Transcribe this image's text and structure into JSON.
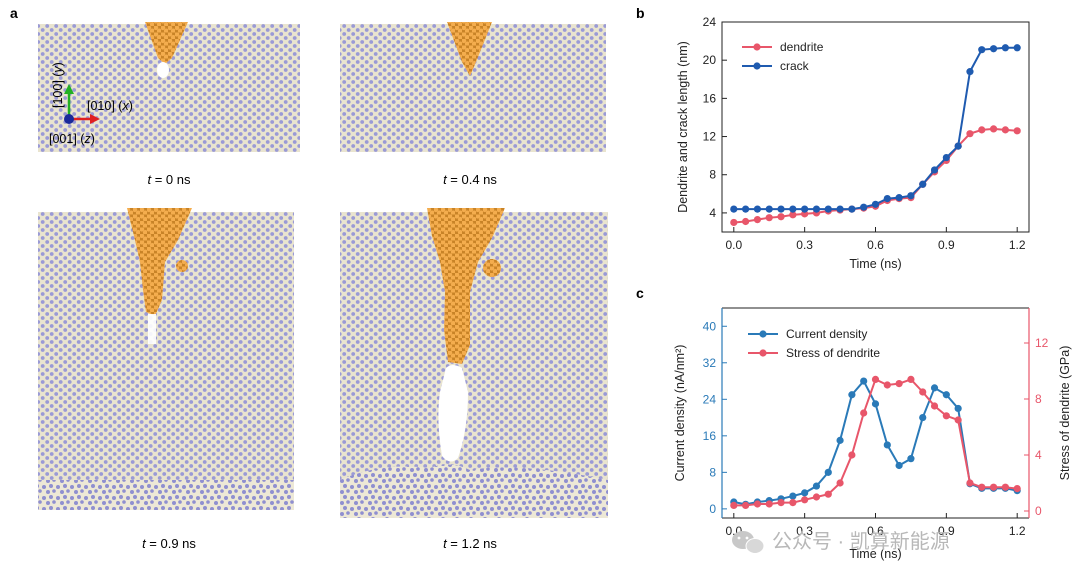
{
  "panels": {
    "a": "a",
    "b": "b",
    "c": "c"
  },
  "simulation": {
    "frames": [
      {
        "t_prefix": "t",
        "t_suffix": " = 0 ns",
        "time_ns": 0
      },
      {
        "t_prefix": "t",
        "t_suffix": " = 0.4 ns",
        "time_ns": 0.4
      },
      {
        "t_prefix": "t",
        "t_suffix": " = 0.9 ns",
        "time_ns": 0.9
      },
      {
        "t_prefix": "t",
        "t_suffix": " = 1.2 ns",
        "time_ns": 1.2
      }
    ],
    "axes": {
      "y": {
        "dir": "[100]",
        "sym": "y"
      },
      "x": {
        "dir": "[010]",
        "sym": "x"
      },
      "z": {
        "dir": "[001]",
        "sym": "z"
      }
    },
    "colors": {
      "matrix": "#9a9ad6",
      "matrix_bg": "#e8e3cd",
      "dendrite": "#f0a94a",
      "y_arrow": "#22b022",
      "x_arrow": "#e02020",
      "z_dot": "#1a2a9a"
    }
  },
  "chart_data": [
    {
      "type": "line",
      "panel": "b",
      "xlabel": "Time (ns)",
      "ylabel": "Dendrite and crack length (nm)",
      "xlim": [
        -0.05,
        1.25
      ],
      "ylim": [
        2,
        24
      ],
      "xticks": [
        "0.0",
        "0.3",
        "0.6",
        "0.9",
        "1.2"
      ],
      "yticks": [
        "4",
        "8",
        "12",
        "16",
        "20",
        "24"
      ],
      "legend": "top-left",
      "x": [
        0.0,
        0.05,
        0.1,
        0.15,
        0.2,
        0.25,
        0.3,
        0.35,
        0.4,
        0.45,
        0.5,
        0.55,
        0.6,
        0.65,
        0.7,
        0.75,
        0.8,
        0.85,
        0.9,
        0.95,
        1.0,
        1.05,
        1.1,
        1.15,
        1.2
      ],
      "series": [
        {
          "name": "dendrite",
          "color": "#e8566a",
          "values": [
            3.0,
            3.1,
            3.3,
            3.5,
            3.6,
            3.8,
            3.9,
            4.0,
            4.2,
            4.3,
            4.4,
            4.5,
            4.7,
            5.3,
            5.5,
            5.6,
            7.0,
            8.3,
            9.5,
            11.0,
            12.3,
            12.7,
            12.8,
            12.7,
            12.6
          ]
        },
        {
          "name": "crack",
          "color": "#1f5bb0",
          "values": [
            4.4,
            4.4,
            4.4,
            4.4,
            4.4,
            4.4,
            4.4,
            4.4,
            4.4,
            4.4,
            4.4,
            4.6,
            4.9,
            5.5,
            5.6,
            5.8,
            7.0,
            8.5,
            9.8,
            11.0,
            18.8,
            21.1,
            21.2,
            21.3,
            21.3
          ]
        }
      ]
    },
    {
      "type": "line",
      "panel": "c",
      "xlabel": "Time (ns)",
      "ylabel_left": "Current density (nA/nm²)",
      "ylabel_right": "Stress of dendrite (GPa)",
      "xlim": [
        -0.05,
        1.25
      ],
      "ylim_left": [
        -2,
        44
      ],
      "ylim_right": [
        -0.5,
        14.5
      ],
      "xticks": [
        "0.0",
        "0.3",
        "0.6",
        "0.9",
        "1.2"
      ],
      "yticks_left": [
        "0",
        "8",
        "16",
        "24",
        "32",
        "40"
      ],
      "yticks_right": [
        "0",
        "4",
        "8",
        "12"
      ],
      "legend": "top-left",
      "x": [
        0.0,
        0.05,
        0.1,
        0.15,
        0.2,
        0.25,
        0.3,
        0.35,
        0.4,
        0.45,
        0.5,
        0.55,
        0.6,
        0.65,
        0.7,
        0.75,
        0.8,
        0.85,
        0.9,
        0.95,
        1.0,
        1.05,
        1.1,
        1.15,
        1.2
      ],
      "series": [
        {
          "name": "Current density",
          "axis": "left",
          "color": "#2a7ab8",
          "values": [
            1.5,
            1.0,
            1.5,
            1.8,
            2.2,
            2.8,
            3.5,
            5.0,
            8.0,
            15.0,
            25.0,
            28.0,
            23.0,
            14.0,
            9.5,
            11.0,
            20.0,
            26.5,
            25.0,
            22.0,
            5.5,
            4.5,
            4.5,
            4.5,
            4.0
          ]
        },
        {
          "name": "Stress of dendrite",
          "axis": "right",
          "color": "#e8566a",
          "values": [
            0.4,
            0.4,
            0.5,
            0.5,
            0.6,
            0.6,
            0.8,
            1.0,
            1.2,
            2.0,
            4.0,
            7.0,
            9.4,
            9.0,
            9.1,
            9.4,
            8.5,
            7.5,
            6.8,
            6.5,
            2.0,
            1.7,
            1.7,
            1.7,
            1.6
          ]
        }
      ]
    }
  ],
  "watermark": {
    "icon": "wechat-icon",
    "text": "公众号 · 凯算新能源"
  }
}
